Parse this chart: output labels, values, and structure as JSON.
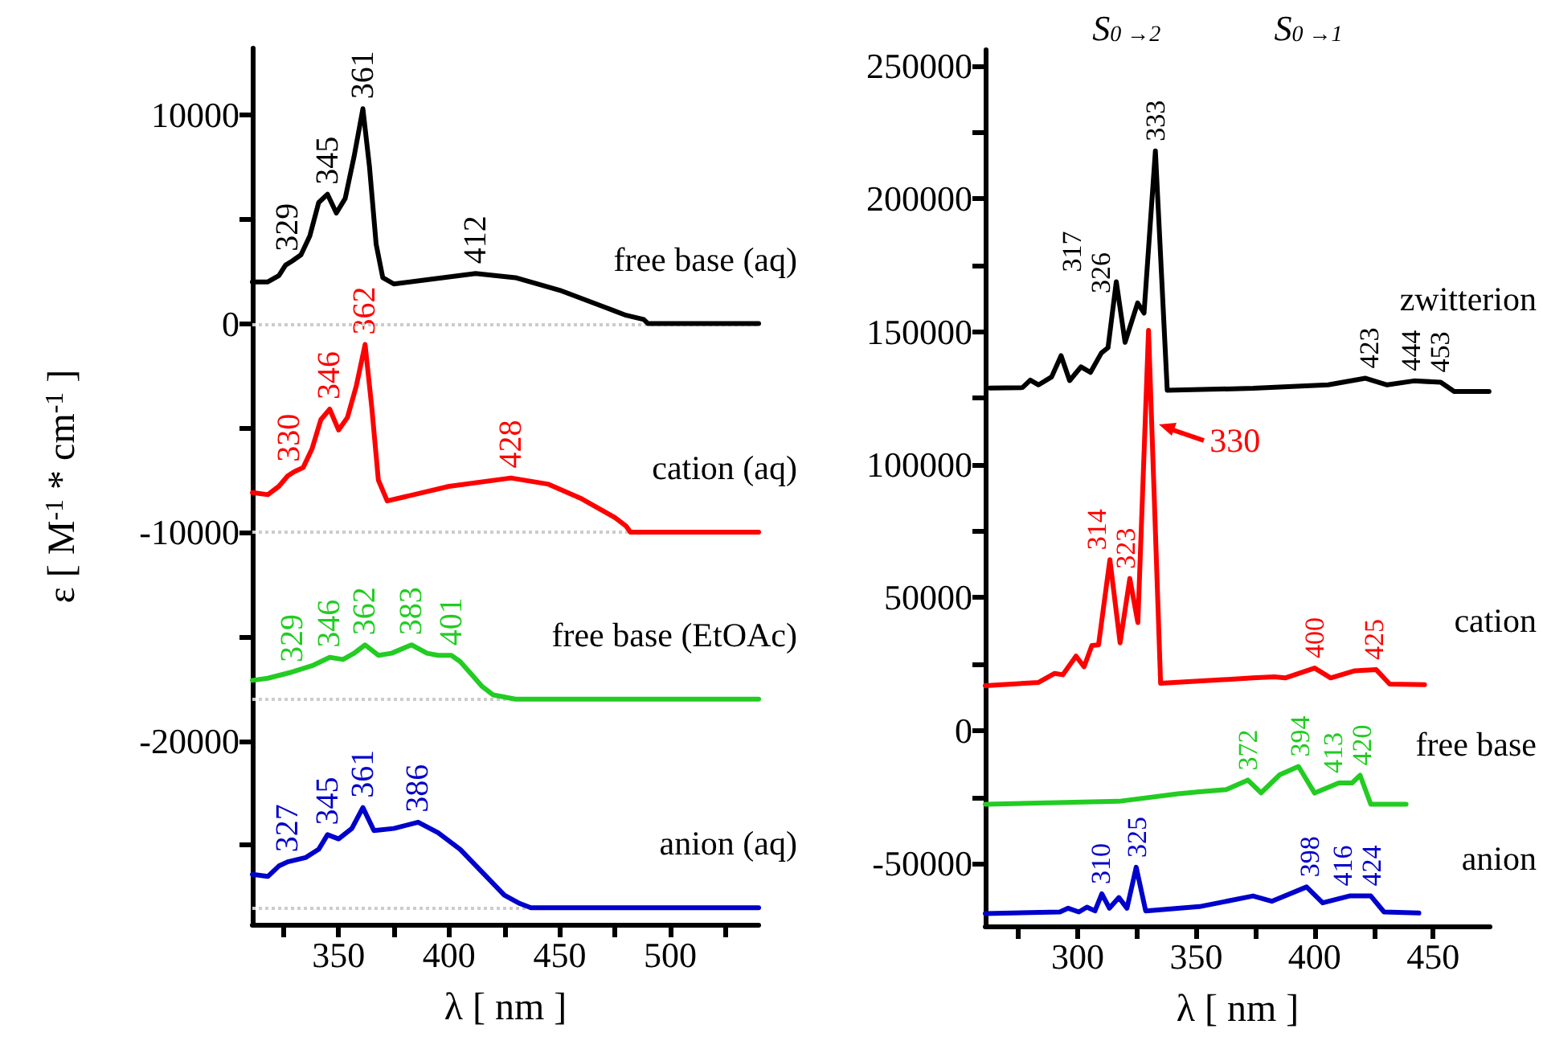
{
  "chart_data": [
    {
      "type": "line",
      "xlabel": "λ [ nm ]",
      "ylabel": "ε [ M$^{-1}$ * cm$^{-1}$ ]",
      "marker": "none",
      "xlim": [
        311,
        540
      ],
      "ylim": [
        -28800,
        13200
      ],
      "xticks": [
        {
          "value": 325,
          "label": null
        },
        350,
        {
          "value": 375,
          "label": null
        },
        400,
        {
          "value": 425,
          "label": null
        },
        450,
        {
          "value": 475,
          "label": null
        },
        500,
        {
          "value": 525,
          "label": null
        }
      ],
      "yticks": [
        {
          "value": -25000,
          "label": null
        },
        -20000,
        {
          "value": -15000,
          "label": null
        },
        -10000,
        {
          "value": -5000,
          "label": null
        },
        0,
        {
          "value": 5000,
          "label": null
        },
        10000
      ],
      "series": [
        {
          "name": "free base (aq)",
          "color": "#000000",
          "x": [
            311,
            318,
            323,
            326,
            329,
            333,
            337,
            341,
            345,
            349,
            353,
            357,
            361,
            364,
            367,
            370,
            375,
            390,
            412,
            430,
            450,
            470,
            480,
            488,
            490,
            540
          ],
          "values": [
            2000,
            2000,
            2300,
            2800,
            3000,
            3300,
            4200,
            5800,
            6200,
            5300,
            6000,
            8000,
            10300,
            7500,
            3800,
            2200,
            1900,
            2100,
            2400,
            2200,
            1600,
            800,
            400,
            200,
            0,
            0
          ]
        },
        {
          "name": "cation (aq)",
          "color": "#ff0000",
          "x": [
            311,
            318,
            323,
            327,
            330,
            334,
            338,
            342,
            346,
            350,
            354,
            358,
            362,
            365,
            368,
            372,
            380,
            400,
            428,
            445,
            460,
            475,
            480,
            482,
            540
          ],
          "values": [
            -8100,
            -8200,
            -7800,
            -7300,
            -7100,
            -6900,
            -6000,
            -4600,
            -4100,
            -5100,
            -4500,
            -3000,
            -1000,
            -4000,
            -7500,
            -8500,
            -8300,
            -7800,
            -7400,
            -7700,
            -8400,
            -9300,
            -9700,
            -10000,
            -10000
          ]
        },
        {
          "name": "free base (EtOAc)",
          "color": "#22cc22",
          "x": [
            311,
            318,
            329,
            338,
            346,
            352,
            357,
            362,
            368,
            374,
            383,
            390,
            395,
            401,
            405,
            410,
            415,
            420,
            430,
            540
          ],
          "values": [
            -17100,
            -17000,
            -16700,
            -16400,
            -16000,
            -16100,
            -15800,
            -15400,
            -15900,
            -15800,
            -15400,
            -15800,
            -15900,
            -15900,
            -16200,
            -16800,
            -17400,
            -17800,
            -18000,
            -18000
          ]
        },
        {
          "name": "anion (aq)",
          "color": "#0000cc",
          "x": [
            311,
            318,
            323,
            327,
            335,
            341,
            345,
            350,
            356,
            361,
            366,
            375,
            386,
            395,
            405,
            415,
            425,
            432,
            437,
            540
          ],
          "values": [
            -26400,
            -26500,
            -26000,
            -25800,
            -25600,
            -25200,
            -24500,
            -24700,
            -24200,
            -23200,
            -24300,
            -24200,
            -23900,
            -24400,
            -25200,
            -26300,
            -27400,
            -27800,
            -28000,
            -28000
          ]
        }
      ],
      "ref_lines": [
        {
          "axis": "y",
          "value": 0,
          "color": "#cccccc",
          "line_style": "dotted"
        },
        {
          "axis": "y",
          "value": -10000,
          "color": "#cccccc",
          "line_style": "dotted"
        },
        {
          "axis": "y",
          "value": -18000,
          "color": "#cccccc",
          "line_style": "dotted"
        },
        {
          "axis": "y",
          "value": -28000,
          "color": "#cccccc",
          "line_style": "dotted"
        }
      ],
      "annotations": [
        {
          "text": "329",
          "x": 329,
          "y": 3000
        },
        {
          "text": "345",
          "x": 345,
          "y": 6200
        },
        {
          "text": "361",
          "x": 361,
          "y": 10300
        },
        {
          "text": "412",
          "x": 412,
          "y": 2400
        },
        {
          "text": "330",
          "x": 330,
          "y": -7100
        },
        {
          "text": "346",
          "x": 346,
          "y": -4100
        },
        {
          "text": "362",
          "x": 362,
          "y": -1000
        },
        {
          "text": "428",
          "x": 428,
          "y": -7400
        },
        {
          "text": "329",
          "x": 329,
          "y": -16700
        },
        {
          "text": "346",
          "x": 346,
          "y": -16000
        },
        {
          "text": "362",
          "x": 362,
          "y": -15400
        },
        {
          "text": "383",
          "x": 383,
          "y": -15400
        },
        {
          "text": "401",
          "x": 401,
          "y": -15900
        },
        {
          "text": "327",
          "x": 327,
          "y": -25800
        },
        {
          "text": "345",
          "x": 345,
          "y": -24500
        },
        {
          "text": "361",
          "x": 361,
          "y": -23200
        },
        {
          "text": "386",
          "x": 386,
          "y": -23900
        }
      ]
    },
    {
      "type": "line",
      "xlabel": "λ [ nm ]",
      "marker": "none",
      "xlim": [
        261,
        474
      ],
      "ylim": [
        -73500,
        256000
      ],
      "xticks": [
        {
          "value": 275,
          "label": null
        },
        300,
        {
          "value": 325,
          "label": null
        },
        350,
        {
          "value": 375,
          "label": null
        },
        400,
        {
          "value": 425,
          "label": null
        },
        450
      ],
      "yticks": [
        {
          "value": -25000,
          "label": null
        },
        -50000,
        0,
        {
          "value": 25000,
          "label": null
        },
        50000,
        {
          "value": 75000,
          "label": null
        },
        100000,
        {
          "value": 125000,
          "label": null
        },
        150000,
        {
          "value": 175000,
          "label": null
        },
        200000,
        {
          "value": 225000,
          "label": null
        },
        250000
      ],
      "series": [
        {
          "name": "zwitterion",
          "color": "#000000",
          "x": [
            263,
            276.7,
            280,
            283.5,
            289,
            293,
            296.6,
            301.4,
            305.4,
            310,
            312.8,
            316.3,
            320,
            325.3,
            328,
            332.8,
            337.8,
            374,
            405.7,
            421.5,
            430.6,
            441.9,
            453.2,
            458.9,
            473.6
          ],
          "values": [
            128800,
            129000,
            131800,
            130000,
            133000,
            141000,
            131600,
            136800,
            134700,
            142000,
            144000,
            168800,
            146000,
            160800,
            157000,
            218000,
            128000,
            128700,
            130000,
            132500,
            130000,
            131500,
            131000,
            127500,
            127500
          ]
        },
        {
          "name": "cation",
          "color": "#ff0000",
          "x": [
            261,
            283.5,
            290.3,
            293.7,
            299.3,
            302.7,
            306,
            308.8,
            313.6,
            317.9,
            322,
            325.4,
            329.9,
            335,
            374,
            383,
            387.6,
            400,
            406.8,
            417,
            426,
            431.7,
            446.4
          ],
          "values": [
            16900,
            18100,
            21500,
            21000,
            28000,
            24000,
            32000,
            32200,
            64300,
            33000,
            57200,
            40600,
            150500,
            17800,
            19800,
            20200,
            19800,
            23500,
            19800,
            22500,
            22900,
            17500,
            17300
          ]
        },
        {
          "name": "free base",
          "color": "#22cc22",
          "x": [
            261,
            317.4,
            342.3,
            351.4,
            362.7,
            371.8,
            377.4,
            385.3,
            393.2,
            400,
            410.2,
            415.8,
            419.2,
            423.7,
            438.6
          ],
          "values": [
            -27700,
            -26600,
            -23800,
            -23000,
            -22200,
            -18600,
            -23400,
            -16600,
            -13500,
            -23500,
            -19700,
            -19700,
            -16800,
            -27700,
            -27700
          ]
        },
        {
          "name": "anion",
          "color": "#0000cc",
          "x": [
            261,
            292.5,
            296,
            300.5,
            303.9,
            307.3,
            310.2,
            313.4,
            317.4,
            320.8,
            324.7,
            328.7,
            351.4,
            374,
            381.9,
            396.6,
            403.4,
            414.7,
            423.7,
            429.3,
            444
          ],
          "values": [
            -68800,
            -68200,
            -66800,
            -68200,
            -66400,
            -67800,
            -61400,
            -66800,
            -62800,
            -66800,
            -51400,
            -67800,
            -66200,
            -62200,
            -64200,
            -58800,
            -64800,
            -62200,
            -62200,
            -68200,
            -68600
          ]
        }
      ],
      "annotations": [
        "S$_{0 →2}$",
        "S$_{0 →1}$",
        {
          "text": "317",
          "x": 317,
          "y": 168800
        },
        {
          "text": "326",
          "x": 326,
          "y": 160800
        },
        {
          "text": "333",
          "x": 333,
          "y": 218000
        },
        {
          "text": "423",
          "x": 423,
          "y": 132500
        },
        {
          "text": "444",
          "x": 444,
          "y": 131500
        },
        {
          "text": "453",
          "x": 453,
          "y": 131000
        },
        {
          "text": "314",
          "x": 314,
          "y": 64300
        },
        {
          "text": "323",
          "x": 323,
          "y": 57200
        },
        {
          "text": "400",
          "x": 400,
          "y": 23500
        },
        {
          "text": "425",
          "x": 425,
          "y": 22900
        },
        {
          "text": "330",
          "x": 334,
          "y": 115000
        },
        {
          "text": "372",
          "x": 372,
          "y": -18600
        },
        {
          "text": "394",
          "x": 394,
          "y": -13500
        },
        {
          "text": "413",
          "x": 413,
          "y": -19700
        },
        {
          "text": "420",
          "x": 420,
          "y": -16800
        },
        {
          "text": "310",
          "x": 310,
          "y": -61400
        },
        {
          "text": "325",
          "x": 325,
          "y": -51400
        },
        {
          "text": "398",
          "x": 398,
          "y": -58800
        },
        {
          "text": "416",
          "x": 416,
          "y": -62200
        },
        {
          "text": "424",
          "x": 424,
          "y": -62200
        }
      ]
    }
  ]
}
